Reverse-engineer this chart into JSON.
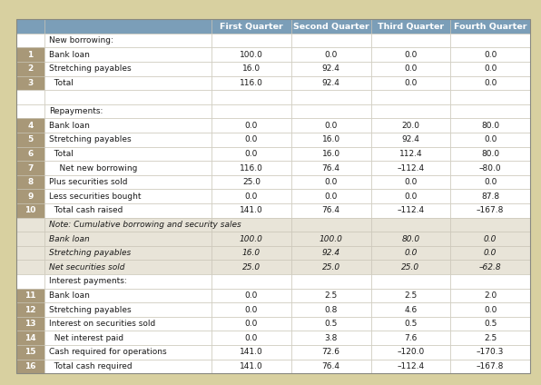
{
  "columns": [
    "First Quarter",
    "Second Quarter",
    "Third Quarter",
    "Fourth Quarter"
  ],
  "header_bg": "#7b9eb8",
  "header_text_color": "#ffffff",
  "background_outer": "#d8d0a0",
  "row_number_bg": "#a89878",
  "row_number_color": "#ffffff",
  "italic_section_bg": "#e8e4d8",
  "white": "#ffffff",
  "grid_color": "#c8c4b8",
  "rows": [
    {
      "num": "",
      "label": "New borrowing:",
      "italic_row": false,
      "section_header": true,
      "values": [
        "",
        "",
        "",
        ""
      ]
    },
    {
      "num": "1",
      "label": "Bank loan",
      "italic_row": false,
      "section_header": false,
      "values": [
        "100.0",
        "0.0",
        "0.0",
        "0.0"
      ]
    },
    {
      "num": "2",
      "label": "Stretching payables",
      "italic_row": false,
      "section_header": false,
      "values": [
        "16.0",
        "92.4",
        "0.0",
        "0.0"
      ]
    },
    {
      "num": "3",
      "label": "  Total",
      "italic_row": false,
      "section_header": false,
      "values": [
        "116.0",
        "92.4",
        "0.0",
        "0.0"
      ]
    },
    {
      "num": "",
      "label": "",
      "italic_row": false,
      "section_header": false,
      "values": [
        "",
        "",
        "",
        ""
      ]
    },
    {
      "num": "",
      "label": "Repayments:",
      "italic_row": false,
      "section_header": true,
      "values": [
        "",
        "",
        "",
        ""
      ]
    },
    {
      "num": "4",
      "label": "Bank loan",
      "italic_row": false,
      "section_header": false,
      "values": [
        "0.0",
        "0.0",
        "20.0",
        "80.0"
      ]
    },
    {
      "num": "5",
      "label": "Stretching payables",
      "italic_row": false,
      "section_header": false,
      "values": [
        "0.0",
        "16.0",
        "92.4",
        "0.0"
      ]
    },
    {
      "num": "6",
      "label": "  Total",
      "italic_row": false,
      "section_header": false,
      "values": [
        "0.0",
        "16.0",
        "112.4",
        "80.0"
      ]
    },
    {
      "num": "7",
      "label": "    Net new borrowing",
      "italic_row": false,
      "section_header": false,
      "values": [
        "116.0",
        "76.4",
        "–112.4",
        "–80.0"
      ]
    },
    {
      "num": "8",
      "label": "Plus securities sold",
      "italic_row": false,
      "section_header": false,
      "values": [
        "25.0",
        "0.0",
        "0.0",
        "0.0"
      ]
    },
    {
      "num": "9",
      "label": "Less securities bought",
      "italic_row": false,
      "section_header": false,
      "values": [
        "0.0",
        "0.0",
        "0.0",
        "87.8"
      ]
    },
    {
      "num": "10",
      "label": "  Total cash raised",
      "italic_row": false,
      "section_header": false,
      "values": [
        "141.0",
        "76.4",
        "–112.4",
        "–167.8"
      ]
    },
    {
      "num": "",
      "label": "Note: Cumulative borrowing and security sales",
      "italic_row": true,
      "section_header": false,
      "values": [
        "",
        "",
        "",
        ""
      ]
    },
    {
      "num": "",
      "label": "Bank loan",
      "italic_row": true,
      "section_header": false,
      "values": [
        "100.0",
        "100.0",
        "80.0",
        "0.0"
      ]
    },
    {
      "num": "",
      "label": "Stretching payables",
      "italic_row": true,
      "section_header": false,
      "values": [
        "16.0",
        "92.4",
        "0.0",
        "0.0"
      ]
    },
    {
      "num": "",
      "label": "Net securities sold",
      "italic_row": true,
      "section_header": false,
      "values": [
        "25.0",
        "25.0",
        "25.0",
        "–62.8"
      ]
    },
    {
      "num": "",
      "label": "Interest payments:",
      "italic_row": false,
      "section_header": true,
      "values": [
        "",
        "",
        "",
        ""
      ]
    },
    {
      "num": "11",
      "label": "Bank loan",
      "italic_row": false,
      "section_header": false,
      "values": [
        "0.0",
        "2.5",
        "2.5",
        "2.0"
      ]
    },
    {
      "num": "12",
      "label": "Stretching payables",
      "italic_row": false,
      "section_header": false,
      "values": [
        "0.0",
        "0.8",
        "4.6",
        "0.0"
      ]
    },
    {
      "num": "13",
      "label": "Interest on securities sold",
      "italic_row": false,
      "section_header": false,
      "values": [
        "0.0",
        "0.5",
        "0.5",
        "0.5"
      ]
    },
    {
      "num": "14",
      "label": "  Net interest paid",
      "italic_row": false,
      "section_header": false,
      "values": [
        "0.0",
        "3.8",
        "7.6",
        "2.5"
      ]
    },
    {
      "num": "15",
      "label": "Cash required for operations",
      "italic_row": false,
      "section_header": false,
      "values": [
        "141.0",
        "72.6",
        "–120.0",
        "–170.3"
      ]
    },
    {
      "num": "16",
      "label": "  Total cash required",
      "italic_row": false,
      "section_header": false,
      "values": [
        "141.0",
        "76.4",
        "–112.4",
        "–167.8"
      ]
    }
  ]
}
